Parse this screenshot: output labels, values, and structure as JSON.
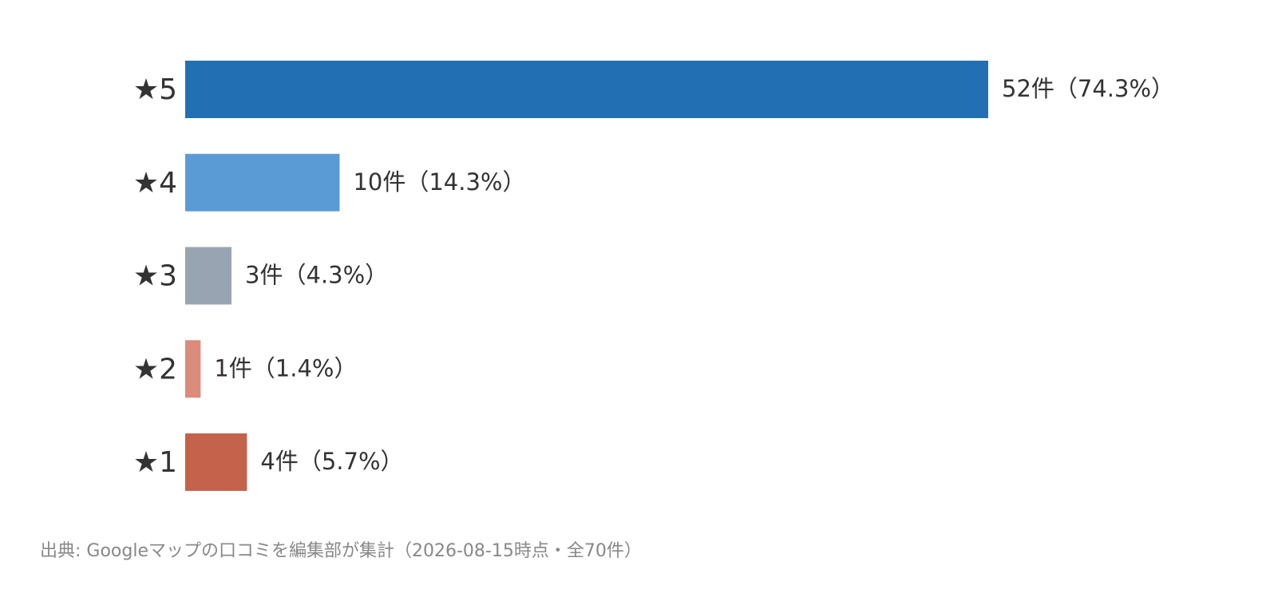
{
  "chart_data": {
    "type": "bar",
    "orientation": "horizontal",
    "categories": [
      "★5",
      "★4",
      "★3",
      "★2",
      "★1"
    ],
    "values": [
      52,
      10,
      3,
      1,
      4
    ],
    "value_labels": [
      "52件（74.3%）",
      "10件（14.3%）",
      "3件（4.3%）",
      "1件（1.4%）",
      "4件（5.7%）"
    ],
    "colors": [
      "#2270b3",
      "#5b9bd5",
      "#98a4b1",
      "#db8b7b",
      "#c4624b"
    ],
    "xlim": [
      0,
      52
    ],
    "source": "出典: Googleマップの口コミを編集部が集計（2026-08-15時点・全70件）"
  }
}
